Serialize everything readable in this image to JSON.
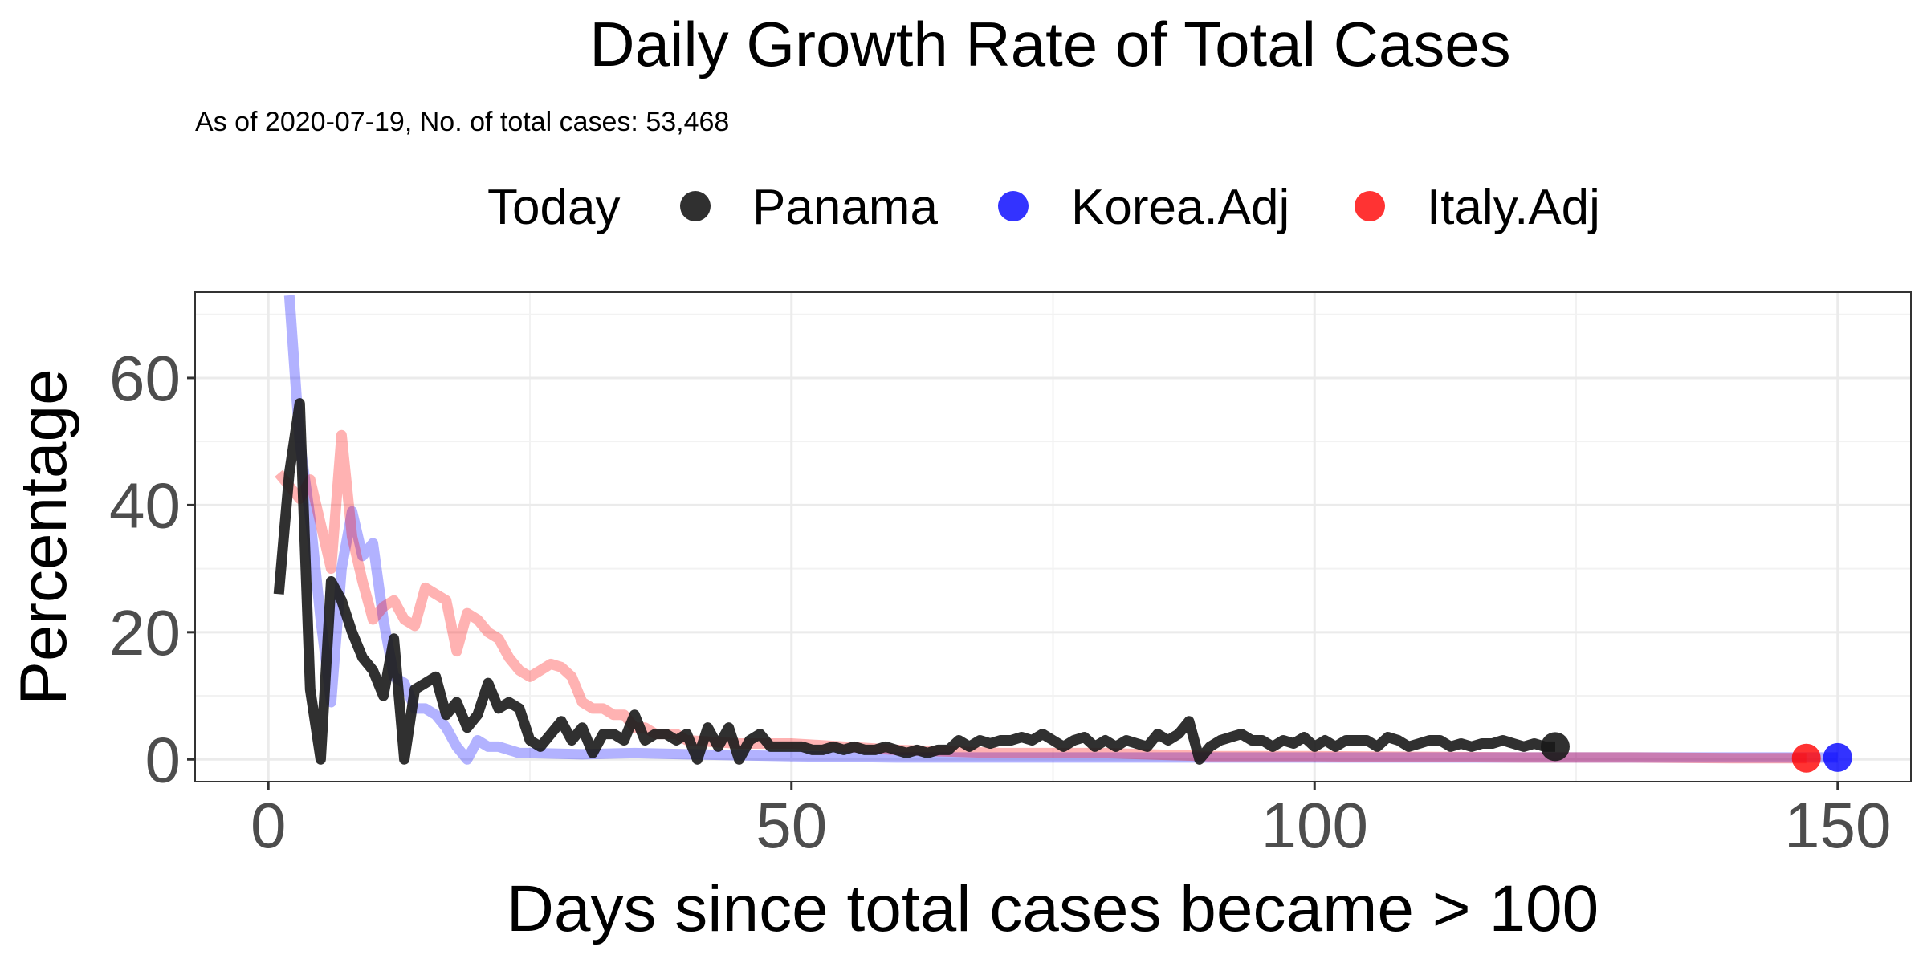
{
  "chart_data": {
    "type": "line",
    "title": "Daily Growth Rate of Total Cases",
    "subtitle": "As of 2020-07-19, No. of total cases: 53,468",
    "xlabel": "Days since total cases became > 100",
    "ylabel": "Percentage",
    "xlim": [
      -7,
      157
    ],
    "ylim": [
      -3.5,
      73.5
    ],
    "x_ticks": [
      0,
      50,
      100,
      150
    ],
    "y_ticks": [
      0,
      20,
      40,
      60
    ],
    "grid": true,
    "legend": {
      "title": "Today",
      "position": "top"
    },
    "series": [
      {
        "name": "Panama",
        "color": "#1a1a1a",
        "opacity": 0.9,
        "x": [
          1,
          2,
          3,
          4,
          5,
          6,
          7,
          8,
          9,
          10,
          11,
          12,
          13,
          14,
          15,
          16,
          17,
          18,
          19,
          20,
          21,
          22,
          23,
          24,
          25,
          26,
          27,
          28,
          29,
          30,
          31,
          32,
          33,
          34,
          35,
          36,
          37,
          38,
          39,
          40,
          41,
          42,
          43,
          44,
          45,
          46,
          47,
          48,
          49,
          50,
          51,
          52,
          53,
          54,
          55,
          56,
          57,
          58,
          59,
          60,
          61,
          62,
          63,
          64,
          65,
          66,
          67,
          68,
          69,
          70,
          71,
          72,
          73,
          74,
          75,
          76,
          77,
          78,
          79,
          80,
          81,
          82,
          83,
          84,
          85,
          86,
          87,
          88,
          89,
          90,
          91,
          92,
          93,
          94,
          95,
          96,
          97,
          98,
          99,
          100,
          101,
          102,
          103,
          104,
          105,
          106,
          107,
          108,
          109,
          110,
          111,
          112,
          113,
          114,
          115,
          116,
          117,
          118,
          119,
          120,
          121,
          122,
          123
        ],
        "values": [
          26,
          45,
          56,
          11,
          0,
          28,
          25,
          20,
          16,
          14,
          10,
          19,
          0,
          11,
          12,
          13,
          7,
          9,
          5,
          7,
          12,
          8,
          9,
          8,
          3,
          2,
          4,
          6,
          3,
          5,
          1,
          4,
          4,
          3,
          7,
          3,
          4,
          4,
          3,
          4,
          0,
          5,
          2,
          5,
          0,
          3,
          4,
          2,
          2,
          2,
          2,
          1.5,
          1.5,
          2,
          1.5,
          2,
          1.5,
          1.5,
          2,
          1.5,
          1,
          1.5,
          1,
          1.5,
          1.5,
          3,
          2,
          3,
          2.5,
          3,
          3,
          3.5,
          3,
          4,
          3,
          2,
          3,
          3.5,
          2,
          3,
          2,
          3,
          2.5,
          2,
          4,
          3,
          4,
          6,
          0,
          2,
          3,
          3.5,
          4,
          3,
          3,
          2,
          3,
          2.5,
          3.5,
          2,
          3,
          2,
          3,
          3,
          3,
          2,
          3.5,
          3,
          2,
          2.5,
          3,
          3,
          2,
          2.5,
          2,
          2.5,
          2.5,
          3,
          2.5,
          2,
          2.5,
          2,
          2
        ],
        "today": {
          "x": 123,
          "y": 2
        }
      },
      {
        "name": "Korea.Adj",
        "color": "#0000ff",
        "opacity": 0.3,
        "x": [
          2,
          3,
          4,
          5,
          6,
          7,
          8,
          9,
          10,
          11,
          12,
          13,
          14,
          15,
          16,
          17,
          18,
          19,
          20,
          21,
          22,
          23,
          24,
          25,
          30,
          35,
          40,
          50,
          60,
          70,
          80,
          90,
          100,
          110,
          120,
          130,
          140,
          150
        ],
        "values": [
          73,
          50,
          38,
          22,
          9,
          30,
          39,
          32,
          34,
          22,
          13,
          12,
          8,
          8,
          7,
          5,
          2,
          0,
          3,
          2,
          2,
          1.5,
          1,
          1,
          0.8,
          1,
          0.8,
          0.5,
          0.3,
          0.3,
          0.3,
          0.3,
          0.3,
          0.3,
          0.3,
          0.3,
          0.3,
          0.3
        ],
        "today": {
          "x": 150,
          "y": 0.3
        }
      },
      {
        "name": "Italy.Adj",
        "color": "#ff0000",
        "opacity": 0.3,
        "x": [
          1,
          2,
          3,
          4,
          5,
          6,
          7,
          8,
          9,
          10,
          11,
          12,
          13,
          14,
          15,
          16,
          17,
          18,
          19,
          20,
          21,
          22,
          23,
          24,
          25,
          26,
          27,
          28,
          29,
          30,
          31,
          32,
          33,
          34,
          35,
          36,
          37,
          38,
          39,
          40,
          45,
          50,
          55,
          60,
          70,
          80,
          90,
          100,
          110,
          120,
          130,
          140,
          147
        ],
        "values": [
          45,
          43,
          41,
          44,
          37,
          30,
          51,
          35,
          28,
          22,
          24,
          25,
          22,
          21,
          27,
          26,
          25,
          17,
          23,
          22,
          20,
          19,
          16,
          14,
          13,
          14,
          15,
          14.5,
          13,
          9,
          8,
          8,
          7,
          7,
          5,
          5,
          4,
          4,
          4,
          3,
          2.5,
          2.5,
          2,
          1.5,
          1,
          1,
          0.5,
          0.5,
          0.4,
          0.3,
          0.3,
          0.2,
          0.2
        ],
        "today": {
          "x": 147,
          "y": 0.2
        }
      }
    ]
  }
}
